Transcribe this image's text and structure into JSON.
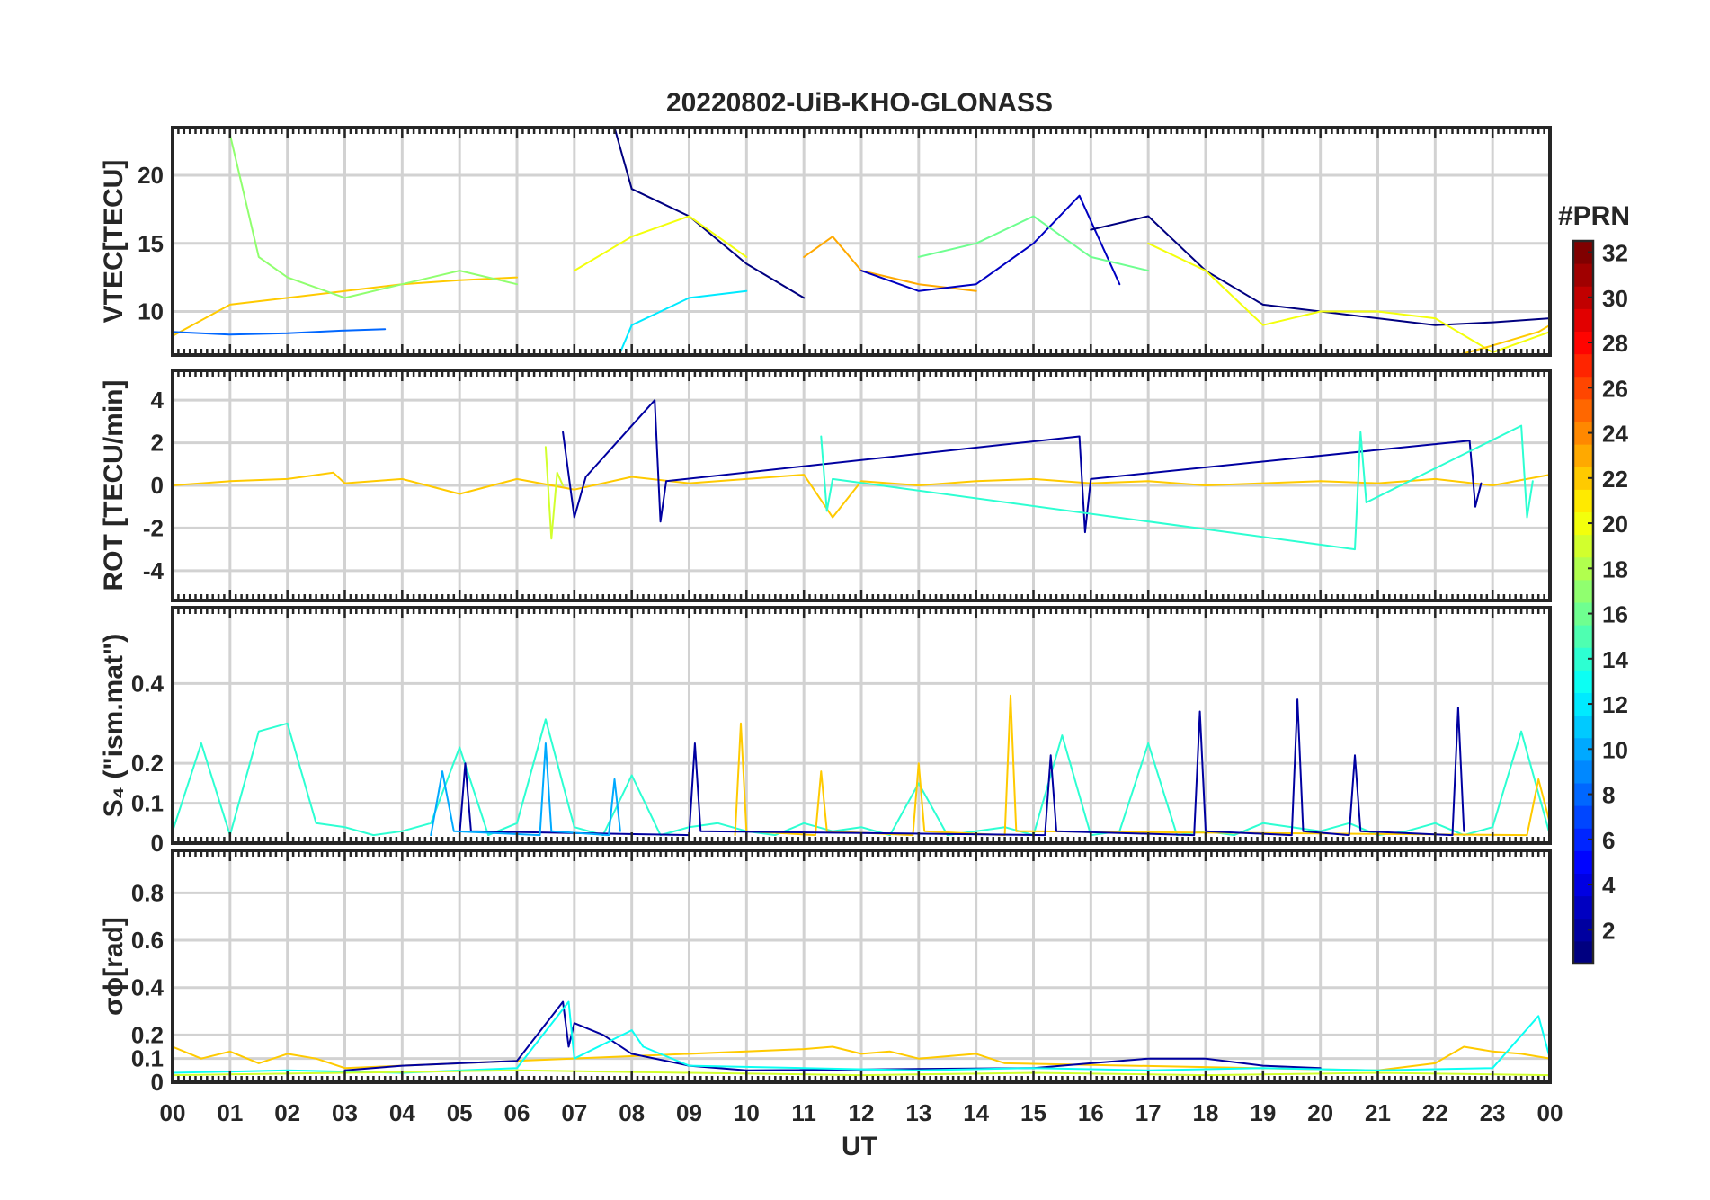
{
  "chart_data": {
    "type": "line",
    "title": "20220802-UiB-KHO-GLONASS",
    "xlabel": "UT",
    "x_ticks": [
      "00",
      "01",
      "02",
      "03",
      "04",
      "05",
      "06",
      "07",
      "08",
      "09",
      "10",
      "11",
      "12",
      "13",
      "14",
      "15",
      "16",
      "17",
      "18",
      "19",
      "20",
      "21",
      "22",
      "23",
      "00"
    ],
    "xlim_hours": [
      0,
      24
    ],
    "colorbar": {
      "label": "#PRN",
      "range": [
        1,
        32
      ],
      "ticks": [
        "2",
        "4",
        "6",
        "8",
        "10",
        "12",
        "14",
        "16",
        "18",
        "20",
        "22",
        "24",
        "26",
        "28",
        "30",
        "32"
      ],
      "colormap": "jet"
    },
    "panels": [
      {
        "name": "vtec",
        "ylabel": "VTEC[TECU]",
        "ylim": [
          6.8,
          23.5
        ],
        "yticks": [
          10,
          15,
          20
        ],
        "ytick_labels": [
          "10",
          "15",
          "20"
        ],
        "grid": true,
        "series": [
          {
            "prn": 22,
            "x": [
              0,
              1,
              2,
              3,
              4,
              5,
              6
            ],
            "y": [
              8.2,
              10.5,
              11,
              11.5,
              12,
              12.3,
              12.5
            ]
          },
          {
            "prn": 17,
            "x": [
              1,
              1.5,
              2,
              3,
              4,
              5,
              6
            ],
            "y": [
              23,
              14,
              12.5,
              11,
              12,
              13,
              12
            ]
          },
          {
            "prn": 8,
            "x": [
              0,
              1,
              2,
              3,
              3.7
            ],
            "y": [
              8.5,
              8.3,
              8.4,
              8.6,
              8.7
            ]
          },
          {
            "prn": 1,
            "x": [
              7.7,
              8,
              9,
              10,
              11
            ],
            "y": [
              23.5,
              19,
              17,
              13.5,
              11
            ]
          },
          {
            "prn": 20,
            "x": [
              7,
              8,
              9,
              10
            ],
            "y": [
              13,
              15.5,
              17,
              14
            ]
          },
          {
            "prn": 12,
            "x": [
              7.8,
              8,
              9,
              10
            ],
            "y": [
              7,
              9,
              11,
              11.5
            ]
          },
          {
            "prn": 23,
            "x": [
              11,
              11.5,
              12,
              13,
              14
            ],
            "y": [
              14,
              15.5,
              13,
              12,
              11.5
            ]
          },
          {
            "prn": 3,
            "x": [
              12,
              13,
              14,
              15,
              15.8,
              16.5
            ],
            "y": [
              13,
              11.5,
              12,
              15,
              18.5,
              12
            ]
          },
          {
            "prn": 16,
            "x": [
              13,
              14,
              15,
              16,
              17
            ],
            "y": [
              14,
              15,
              17,
              14,
              13
            ]
          },
          {
            "prn": 1,
            "x": [
              16,
              17,
              18,
              19,
              20,
              21,
              22,
              23,
              24
            ],
            "y": [
              16,
              17,
              13,
              10.5,
              10,
              9.5,
              9,
              9.2,
              9.5
            ]
          },
          {
            "prn": 20,
            "x": [
              17,
              18,
              19,
              20,
              21,
              22,
              23,
              24
            ],
            "y": [
              15,
              13,
              9,
              10,
              10,
              9.5,
              7,
              8.5
            ]
          },
          {
            "prn": 22,
            "x": [
              22.4,
              23,
              23.8,
              24
            ],
            "y": [
              6.8,
              7.5,
              8.5,
              9
            ]
          }
        ]
      },
      {
        "name": "rot",
        "ylabel": "ROT [TECU/min]",
        "ylim": [
          -5.4,
          5.4
        ],
        "yticks": [
          -4,
          -2,
          0,
          2,
          4
        ],
        "ytick_labels": [
          "-4",
          "-2",
          "0",
          "2",
          "4"
        ],
        "grid": true,
        "series": [
          {
            "prn": 22,
            "x": [
              0,
              1,
              2,
              2.8,
              3,
              4,
              5,
              6,
              7,
              8,
              9,
              10,
              11,
              11.5,
              12,
              13,
              14,
              15,
              16,
              17,
              18,
              19,
              20,
              21,
              22,
              23,
              24
            ],
            "y": [
              0,
              0.2,
              0.3,
              0.6,
              0.1,
              0.3,
              -0.4,
              0.3,
              -0.2,
              0.4,
              0.1,
              0.3,
              0.5,
              -1.5,
              0.2,
              0,
              0.2,
              0.3,
              0.1,
              0.2,
              0,
              0.1,
              0.2,
              0.1,
              0.3,
              0,
              0.5
            ]
          },
          {
            "prn": 2,
            "x": [
              6.8,
              7,
              7.2,
              8.4,
              8.5,
              8.6,
              15.8,
              15.9,
              16,
              22.6,
              22.7,
              22.8
            ],
            "y": [
              2.5,
              -1.5,
              0.4,
              4,
              -1.7,
              0.2,
              2.3,
              -2.2,
              0.3,
              2.1,
              -1,
              0.1
            ]
          },
          {
            "prn": 14,
            "x": [
              11.3,
              11.4,
              11.5,
              20.6,
              20.7,
              20.8,
              23.5,
              23.6,
              23.7
            ],
            "y": [
              2.3,
              -1.2,
              0.3,
              -3,
              2.5,
              -0.8,
              2.8,
              -1.5,
              0.2
            ]
          },
          {
            "prn": 19,
            "x": [
              6.5,
              6.6,
              6.7,
              6.8
            ],
            "y": [
              1.8,
              -2.5,
              0.6,
              0
            ]
          }
        ]
      },
      {
        "name": "s4",
        "ylabel": "S₄ (\"ism.mat\")",
        "ylim": [
          0,
          0.59
        ],
        "yticks": [
          0,
          0.1,
          0.2,
          0.4
        ],
        "ytick_labels": [
          "0",
          "0.1",
          "0.2",
          "0.4"
        ],
        "grid": true,
        "series": [
          {
            "prn": 14,
            "x": [
              0,
              0.5,
              1,
              1.5,
              2,
              2.5,
              3,
              3.5,
              4,
              4.5,
              5,
              5.5,
              6,
              6.5,
              7,
              7.5,
              8,
              8.5,
              9,
              9.5,
              10,
              10.5,
              11,
              11.5,
              12,
              12.5,
              13,
              13.5,
              14,
              14.5,
              15,
              15.5,
              16,
              16.5,
              17,
              17.5,
              18,
              18.5,
              19,
              19.5,
              20,
              20.5,
              21,
              21.5,
              22,
              22.5,
              23,
              23.5,
              24
            ],
            "y": [
              0.03,
              0.25,
              0.02,
              0.28,
              0.3,
              0.05,
              0.04,
              0.02,
              0.03,
              0.05,
              0.24,
              0.02,
              0.05,
              0.31,
              0.04,
              0.02,
              0.17,
              0.02,
              0.04,
              0.05,
              0.03,
              0.02,
              0.05,
              0.03,
              0.04,
              0.02,
              0.15,
              0.02,
              0.03,
              0.04,
              0.02,
              0.27,
              0.02,
              0.03,
              0.25,
              0.02,
              0.03,
              0.02,
              0.05,
              0.04,
              0.03,
              0.05,
              0.02,
              0.03,
              0.05,
              0.02,
              0.04,
              0.28,
              0.02
            ]
          },
          {
            "prn": 22,
            "x": [
              9.8,
              9.9,
              10,
              11.2,
              11.3,
              11.4,
              12.9,
              13,
              13.1,
              14.5,
              14.6,
              14.7,
              23.6,
              23.8,
              24
            ],
            "y": [
              0.02,
              0.3,
              0.03,
              0.02,
              0.18,
              0.03,
              0.02,
              0.2,
              0.03,
              0.02,
              0.37,
              0.03,
              0.02,
              0.16,
              0.05
            ]
          },
          {
            "prn": 2,
            "x": [
              5,
              5.1,
              5.2,
              9,
              9.1,
              9.2,
              15.2,
              15.3,
              15.4,
              17.8,
              17.9,
              18,
              19.5,
              19.6,
              19.7,
              20.5,
              20.6,
              20.7,
              22.3,
              22.4,
              22.5
            ],
            "y": [
              0.02,
              0.2,
              0.03,
              0.02,
              0.25,
              0.03,
              0.02,
              0.22,
              0.03,
              0.02,
              0.33,
              0.03,
              0.02,
              0.36,
              0.03,
              0.02,
              0.22,
              0.03,
              0.02,
              0.34,
              0.03
            ]
          },
          {
            "prn": 10,
            "x": [
              4.5,
              4.7,
              4.9,
              6.4,
              6.5,
              6.6,
              7.6,
              7.7,
              7.8
            ],
            "y": [
              0.02,
              0.18,
              0.03,
              0.02,
              0.25,
              0.03,
              0.02,
              0.16,
              0.03
            ]
          }
        ]
      },
      {
        "name": "sigma_phi",
        "ylabel": "σϕ[rad]",
        "ylim": [
          0,
          0.98
        ],
        "yticks": [
          0,
          0.1,
          0.2,
          0.4,
          0.6,
          0.8
        ],
        "ytick_labels": [
          "0",
          "0.1",
          "0.2",
          "0.4",
          "0.6",
          "0.8"
        ],
        "grid": true,
        "series": [
          {
            "prn": 22,
            "x": [
              0,
              0.5,
              1,
              1.5,
              2,
              2.5,
              3,
              11,
              11.5,
              12,
              12.5,
              13,
              14,
              14.5,
              21,
              22,
              22.5,
              23,
              23.5,
              24
            ],
            "y": [
              0.15,
              0.1,
              0.13,
              0.08,
              0.12,
              0.1,
              0.06,
              0.14,
              0.15,
              0.12,
              0.13,
              0.1,
              0.12,
              0.08,
              0.05,
              0.08,
              0.15,
              0.13,
              0.12,
              0.1
            ]
          },
          {
            "prn": 2,
            "x": [
              3,
              4,
              5,
              6,
              6.8,
              6.9,
              7,
              7.5,
              8,
              9,
              10,
              15,
              16,
              17,
              18,
              19,
              20
            ],
            "y": [
              0.05,
              0.07,
              0.08,
              0.09,
              0.34,
              0.15,
              0.25,
              0.2,
              0.12,
              0.07,
              0.05,
              0.06,
              0.08,
              0.1,
              0.1,
              0.07,
              0.06
            ]
          },
          {
            "prn": 13,
            "x": [
              0,
              2,
              4,
              6,
              6.9,
              7,
              8,
              8.2,
              9,
              11,
              13,
              15,
              17,
              19,
              21,
              23,
              23.8,
              24
            ],
            "y": [
              0.04,
              0.05,
              0.04,
              0.06,
              0.34,
              0.1,
              0.22,
              0.15,
              0.07,
              0.06,
              0.05,
              0.06,
              0.05,
              0.06,
              0.05,
              0.06,
              0.28,
              0.1
            ]
          },
          {
            "prn": 19,
            "x": [
              0,
              3,
              6,
              9,
              12,
              15,
              18,
              21,
              24
            ],
            "y": [
              0.03,
              0.04,
              0.05,
              0.04,
              0.03,
              0.04,
              0.03,
              0.04,
              0.03
            ]
          }
        ]
      }
    ]
  }
}
